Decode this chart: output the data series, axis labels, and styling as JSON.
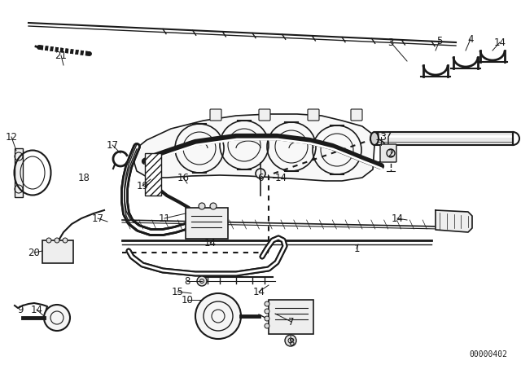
{
  "bg_color": "#ffffff",
  "line_color": "#1a1a1a",
  "diagram_code": "00000402",
  "labels": [
    [
      "21",
      75,
      68
    ],
    [
      "12",
      14,
      168
    ],
    [
      "17",
      138,
      178
    ],
    [
      "18",
      103,
      218
    ],
    [
      "19",
      175,
      228
    ],
    [
      "17",
      120,
      268
    ],
    [
      "11",
      202,
      268
    ],
    [
      "16",
      225,
      218
    ],
    [
      "20",
      42,
      310
    ],
    [
      "8",
      230,
      345
    ],
    [
      "14",
      258,
      298
    ],
    [
      "9",
      25,
      380
    ],
    [
      "14",
      45,
      380
    ],
    [
      "15",
      218,
      358
    ],
    [
      "10",
      230,
      368
    ],
    [
      "14",
      318,
      358
    ],
    [
      "7",
      358,
      395
    ],
    [
      "8",
      358,
      420
    ],
    [
      "6",
      320,
      218
    ],
    [
      "14",
      345,
      218
    ],
    [
      "1",
      438,
      305
    ],
    [
      "14",
      488,
      268
    ],
    [
      "13",
      468,
      168
    ],
    [
      "2",
      480,
      188
    ],
    [
      "3",
      480,
      52
    ],
    [
      "5",
      540,
      50
    ],
    [
      "4",
      578,
      48
    ],
    [
      "14",
      614,
      52
    ]
  ]
}
